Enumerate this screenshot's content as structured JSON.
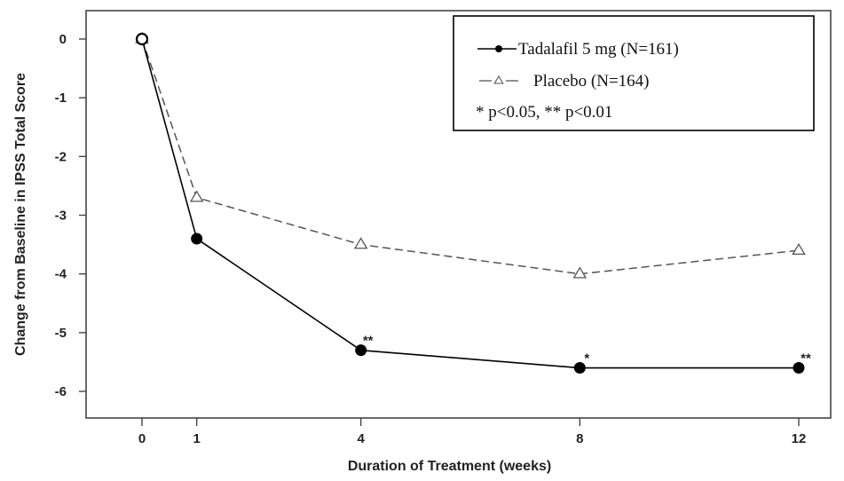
{
  "chart_data": {
    "type": "line",
    "title": "",
    "xlabel": "Duration of Treatment (weeks)",
    "ylabel": "Change from Baseline in IPSS Total Score",
    "xlim": [
      -1,
      12.5
    ],
    "ylim": [
      -6.5,
      0.45
    ],
    "x_ticks": [
      0,
      1,
      4,
      8,
      12
    ],
    "y_ticks": [
      0,
      -1,
      -2,
      -3,
      -4,
      -5,
      -6
    ],
    "x_tick_labels": [
      "0",
      "1",
      "4",
      "8",
      "12"
    ],
    "y_tick_labels": [
      "0",
      "-1",
      "-2",
      "-3",
      "-4",
      "-5",
      "-6"
    ],
    "grid": false,
    "legend_position": "top-right",
    "series": [
      {
        "name": "Tadalafil 5 mg (N=161)",
        "style": "solid",
        "marker": "filled-circle",
        "color": "#000000",
        "x": [
          0,
          1,
          4,
          8,
          12
        ],
        "y": [
          0,
          -3.4,
          -5.3,
          -5.6,
          -5.6
        ]
      },
      {
        "name": "Placebo (N=164)",
        "style": "dashed",
        "marker": "open-triangle",
        "color": "#555555",
        "x": [
          0,
          1,
          4,
          8,
          12
        ],
        "y": [
          0,
          -2.7,
          -3.5,
          -4.0,
          -3.6
        ]
      }
    ],
    "legend_note": "* p<0.05, ** p<0.01",
    "annotations": [
      {
        "x": 4,
        "y": -5.3,
        "text": "**"
      },
      {
        "x": 8,
        "y": -5.6,
        "text": "*"
      },
      {
        "x": 12,
        "y": -5.6,
        "text": "**"
      }
    ]
  }
}
